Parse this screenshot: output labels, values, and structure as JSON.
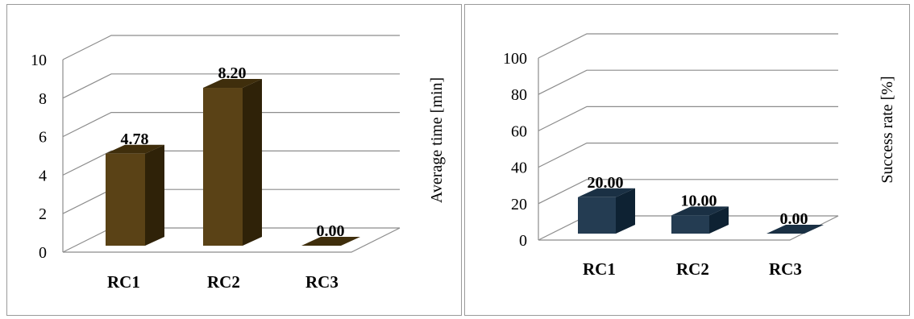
{
  "chart_data": [
    {
      "type": "bar",
      "categories": [
        "RC1",
        "RC2",
        "RC3"
      ],
      "values": [
        4.78,
        8.2,
        0.0
      ],
      "data_labels": [
        "4.78",
        "8.20",
        "0.00"
      ],
      "ylabel": "Average time [min]",
      "ylim": [
        0,
        10
      ],
      "yticks": [
        "0",
        "2",
        "4",
        "6",
        "8",
        "10"
      ],
      "grid": true,
      "colors": {
        "front": "#5a4216",
        "side": "#2f2208",
        "top": "#3f2e0c"
      }
    },
    {
      "type": "bar",
      "categories": [
        "RC1",
        "RC2",
        "RC3"
      ],
      "values": [
        20.0,
        10.0,
        0.0
      ],
      "data_labels": [
        "20.00",
        "10.00",
        "0.00"
      ],
      "ylabel": "Success rate [%]",
      "ylim": [
        0,
        100
      ],
      "yticks": [
        "0",
        "20",
        "40",
        "60",
        "80",
        "100"
      ],
      "grid": true,
      "colors": {
        "front": "#243c52",
        "side": "#0e2233",
        "top": "#1a3044"
      }
    }
  ]
}
